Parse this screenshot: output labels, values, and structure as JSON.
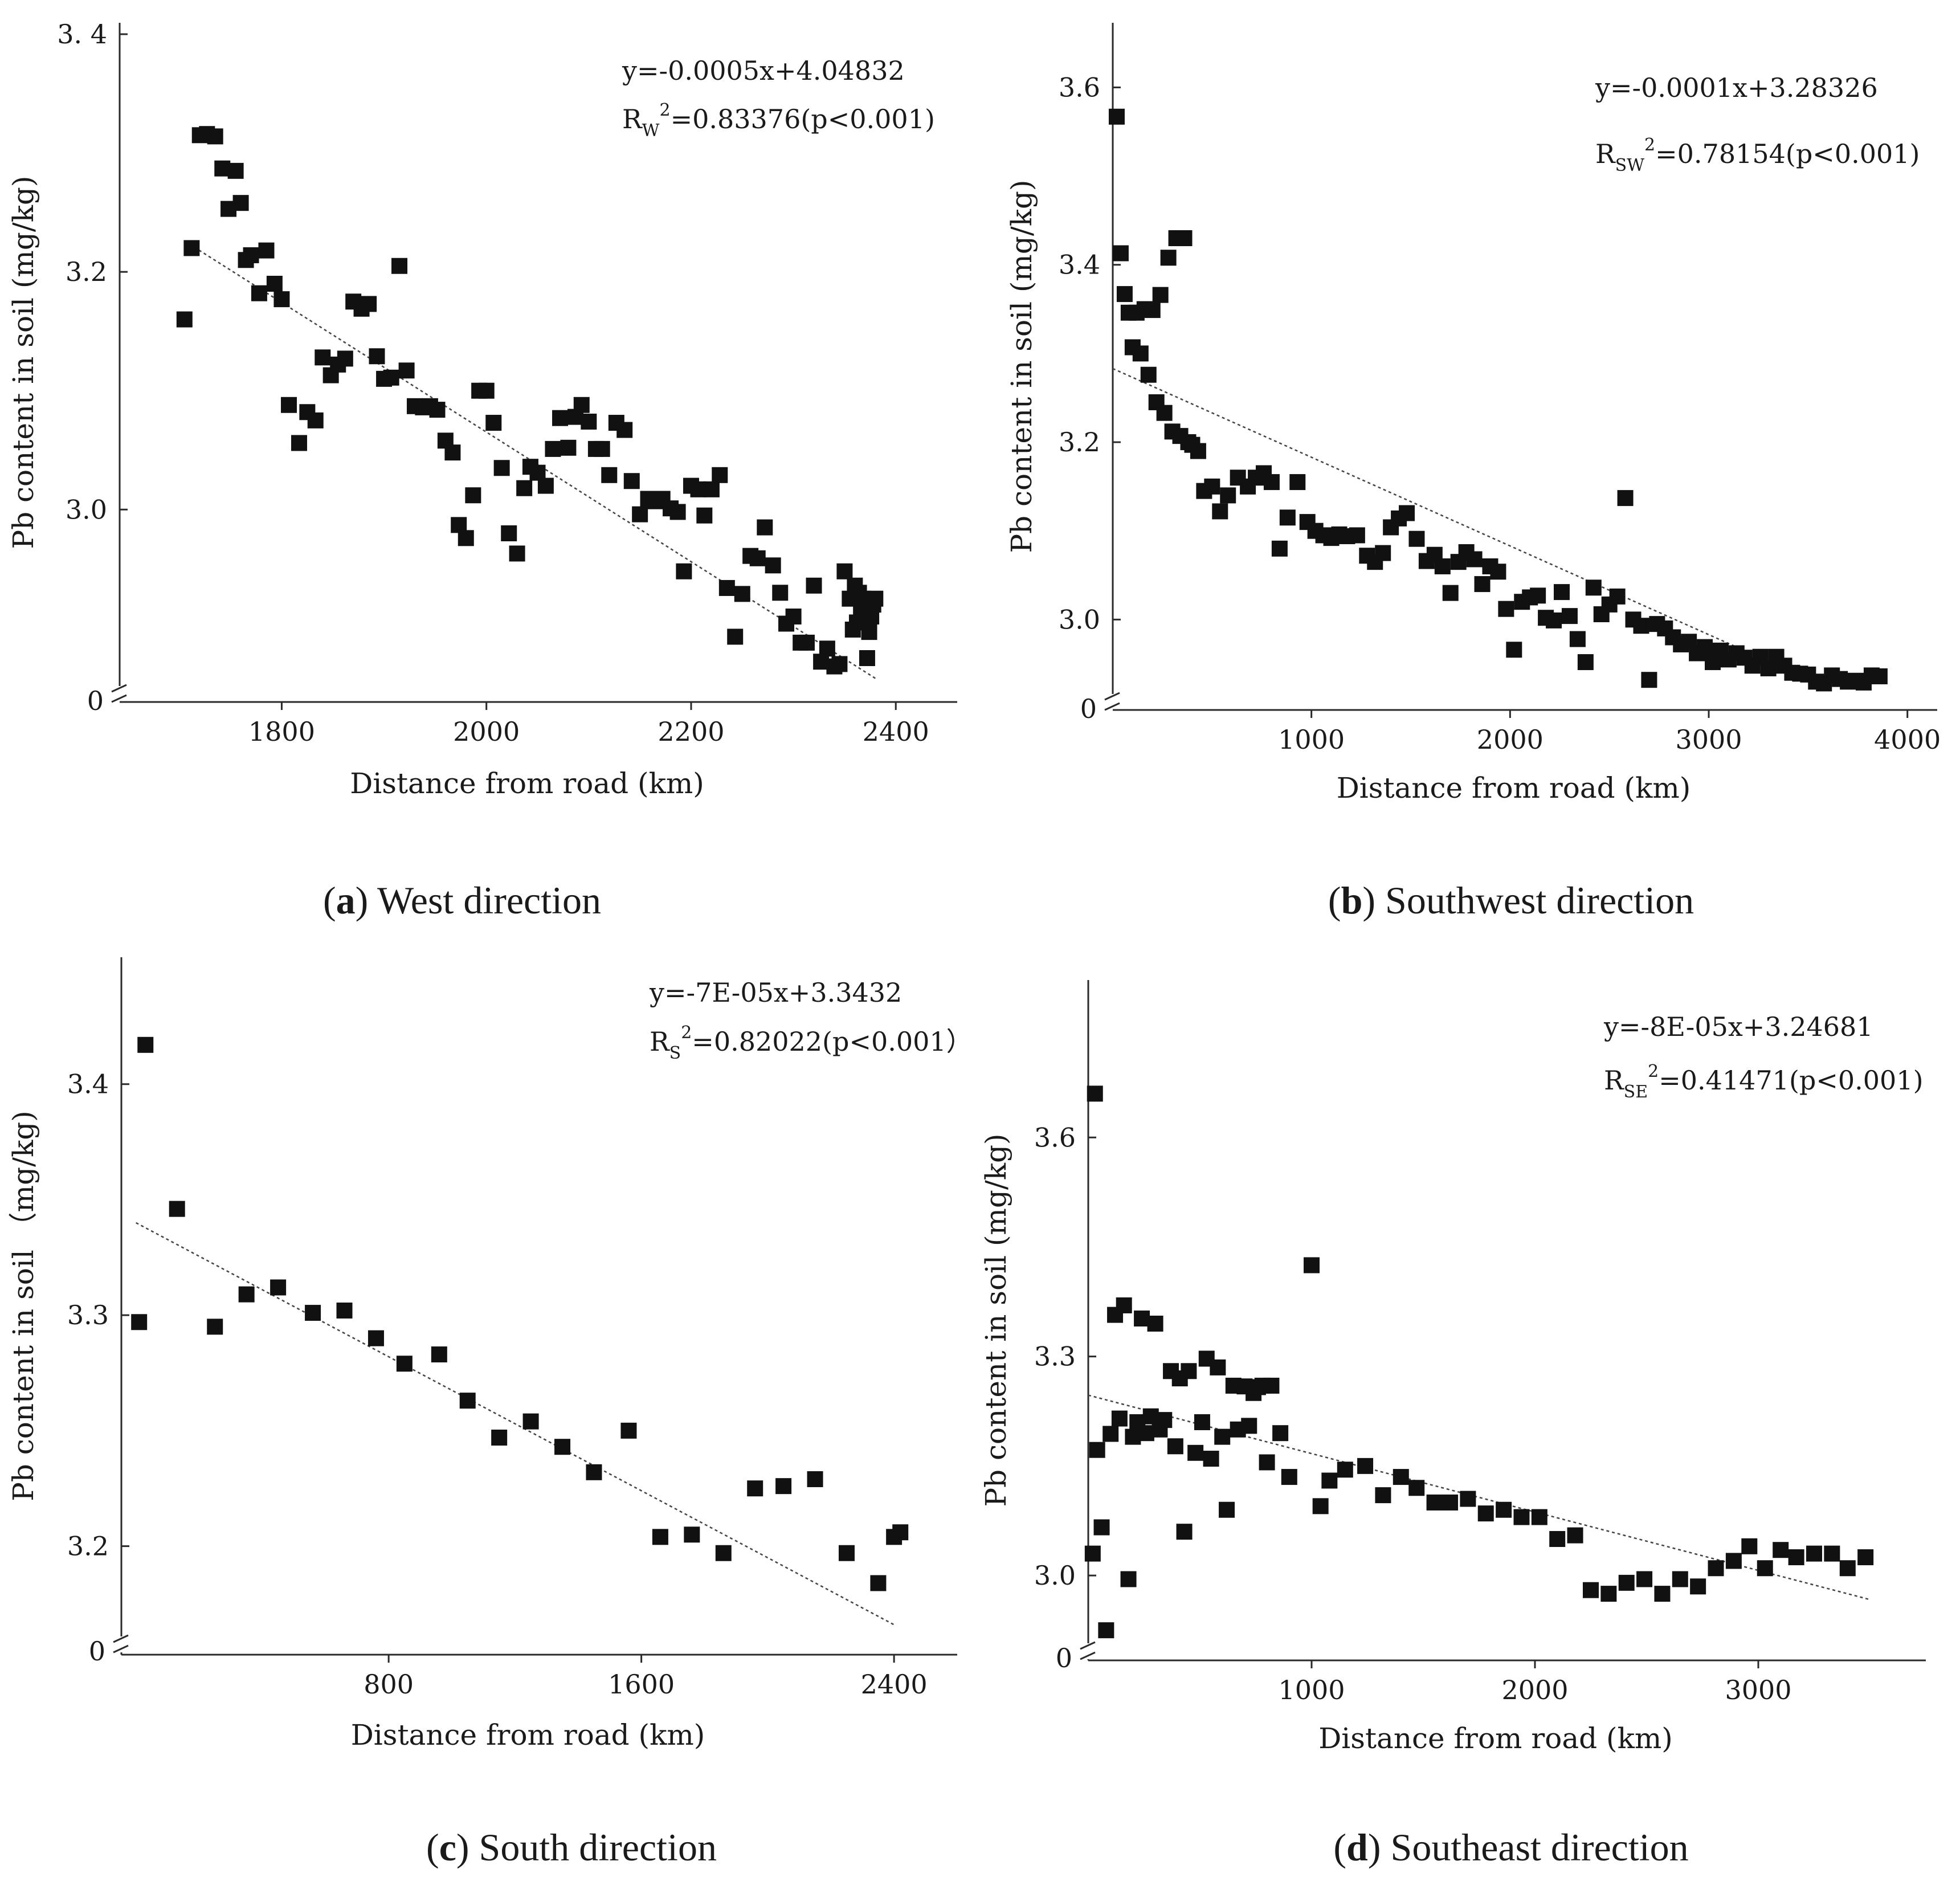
{
  "chart_data": [
    {
      "id": "a",
      "type": "scatter",
      "title": "",
      "caption": {
        "letter": "a",
        "text": "West direction"
      },
      "xlabel": "Distance from road (km)",
      "ylabel": "Pb content in soil (mg/kg)",
      "xlim": [
        1650,
        2460
      ],
      "ylim": [
        2.84,
        3.4
      ],
      "xticks": [
        1800,
        2000,
        2200,
        2400
      ],
      "xtick_labels": [
        "1800",
        "2000",
        "2200",
        "2400"
      ],
      "yticks": [
        3.0,
        3.2,
        3.4
      ],
      "ytick_labels": [
        "3.0",
        "3.2",
        "3. 4"
      ],
      "y_break_label": "0",
      "trendline": {
        "x": [
          1705,
          2380
        ],
        "y": [
          3.226,
          2.858
        ]
      },
      "equation": "y=-0.0005x+4.04832",
      "r2_prefix": "R",
      "r2_subscript": "W",
      "r2_text": "=0.83376(p<0.001)",
      "x": [
        1705,
        1712,
        1720,
        1727,
        1735,
        1742,
        1748,
        1755,
        1760,
        1765,
        1770,
        1778,
        1785,
        1793,
        1800,
        1807,
        1817,
        1825,
        1833,
        1840,
        1848,
        1855,
        1862,
        1870,
        1878,
        1885,
        1893,
        1900,
        1907,
        1915,
        1922,
        1930,
        1938,
        1945,
        1952,
        1960,
        1967,
        1973,
        1980,
        1987,
        1993,
        2000,
        2007,
        2015,
        2022,
        2030,
        2037,
        2043,
        2050,
        2058,
        2065,
        2072,
        2080,
        2087,
        2093,
        2100,
        2107,
        2113,
        2120,
        2127,
        2135,
        2142,
        2150,
        2158,
        2165,
        2172,
        2180,
        2187,
        2193,
        2200,
        2207,
        2213,
        2220,
        2228,
        2235,
        2243,
        2250,
        2258,
        2265,
        2272,
        2280,
        2287,
        2293,
        2300,
        2307,
        2313,
        2320,
        2327,
        2333,
        2340,
        2345,
        2350,
        2355,
        2358,
        2360,
        2362,
        2364,
        2366,
        2368,
        2370,
        2372,
        2374,
        2376,
        2378,
        2380
      ],
      "y": [
        3.16,
        3.22,
        3.315,
        3.316,
        3.314,
        3.287,
        3.253,
        3.285,
        3.258,
        3.21,
        3.214,
        3.182,
        3.218,
        3.19,
        3.177,
        3.088,
        3.056,
        3.082,
        3.075,
        3.128,
        3.113,
        3.122,
        3.127,
        3.175,
        3.169,
        3.173,
        3.129,
        3.11,
        3.111,
        3.205,
        3.117,
        3.087,
        3.086,
        3.087,
        3.084,
        3.058,
        3.048,
        2.987,
        2.976,
        3.012,
        3.1,
        3.1,
        3.073,
        3.035,
        2.98,
        2.963,
        3.018,
        3.036,
        3.031,
        3.02,
        3.051,
        3.077,
        3.052,
        3.078,
        3.088,
        3.074,
        3.051,
        3.051,
        3.029,
        3.073,
        3.067,
        3.024,
        2.996,
        3.009,
        3.007,
        3.009,
        3.001,
        2.998,
        2.948,
        3.02,
        3.017,
        2.995,
        3.017,
        3.029,
        2.934,
        2.893,
        2.929,
        2.961,
        2.959,
        2.985,
        2.953,
        2.93,
        2.904,
        2.91,
        2.888,
        2.888,
        2.936,
        2.872,
        2.883,
        2.868,
        2.87,
        2.948,
        2.925,
        2.899,
        2.936,
        2.905,
        2.93,
        2.916,
        2.925,
        2.905,
        2.875,
        2.897,
        2.91,
        2.92,
        2.925
      ]
    },
    {
      "id": "b",
      "type": "scatter",
      "title": "",
      "caption": {
        "letter": "b",
        "text": "Southwest direction"
      },
      "xlabel": "Distance from road (km)",
      "ylabel": "Pb content in soil (mg/kg)",
      "xlim": [
        0,
        4150
      ],
      "ylim": [
        2.9,
        3.66
      ],
      "xticks": [
        1000,
        2000,
        3000,
        4000
      ],
      "xtick_labels": [
        "1000",
        "2000",
        "3000",
        "4000"
      ],
      "yticks": [
        3.0,
        3.2,
        3.4,
        3.6
      ],
      "ytick_labels": [
        "3.0",
        "3.2",
        "3.4",
        "3.6"
      ],
      "y_break_label": "0",
      "trendline": {
        "x": [
          0,
          3600
        ],
        "y": [
          3.283,
          2.923
        ]
      },
      "equation": "y=-0.0001x+3.28326",
      "r2_prefix": "R",
      "r2_subscript": "SW",
      "r2_text": "=0.78154(p<0.001)",
      "x": [
        20,
        40,
        60,
        80,
        100,
        120,
        140,
        160,
        180,
        200,
        220,
        240,
        260,
        280,
        300,
        320,
        340,
        360,
        380,
        400,
        430,
        460,
        500,
        540,
        580,
        630,
        680,
        720,
        760,
        800,
        840,
        880,
        930,
        980,
        1020,
        1060,
        1100,
        1140,
        1180,
        1230,
        1280,
        1320,
        1360,
        1400,
        1440,
        1480,
        1530,
        1580,
        1620,
        1660,
        1700,
        1740,
        1780,
        1820,
        1860,
        1900,
        1940,
        1980,
        2020,
        2060,
        2100,
        2140,
        2180,
        2220,
        2260,
        2300,
        2340,
        2380,
        2420,
        2460,
        2500,
        2540,
        2580,
        2620,
        2660,
        2700,
        2740,
        2780,
        2820,
        2860,
        2900,
        2940,
        2980,
        3020,
        3060,
        3100,
        3140,
        3180,
        3220,
        3260,
        3300,
        3340,
        3380,
        3420,
        3460,
        3500,
        3540,
        3580,
        3620,
        3660,
        3700,
        3740,
        3780,
        3820,
        3860
      ],
      "y": [
        3.567,
        3.413,
        3.367,
        3.346,
        3.307,
        3.346,
        3.3,
        3.35,
        3.276,
        3.349,
        3.245,
        3.366,
        3.233,
        3.408,
        3.212,
        3.43,
        3.207,
        3.43,
        3.2,
        3.197,
        3.19,
        3.145,
        3.15,
        3.122,
        3.14,
        3.16,
        3.15,
        3.16,
        3.165,
        3.155,
        3.08,
        3.115,
        3.155,
        3.11,
        3.1,
        3.095,
        3.092,
        3.096,
        3.094,
        3.095,
        3.072,
        3.065,
        3.075,
        3.104,
        3.114,
        3.12,
        3.091,
        3.066,
        3.073,
        3.06,
        3.03,
        3.065,
        3.076,
        3.068,
        3.04,
        3.06,
        3.054,
        3.012,
        2.966,
        3.02,
        3.025,
        3.027,
        3.002,
        2.999,
        3.031,
        3.004,
        2.978,
        2.952,
        3.036,
        3.006,
        3.017,
        3.026,
        3.137,
        3.0,
        2.993,
        2.932,
        2.995,
        2.99,
        2.98,
        2.972,
        2.975,
        2.962,
        2.969,
        2.952,
        2.965,
        2.955,
        2.962,
        2.957,
        2.948,
        2.958,
        2.945,
        2.958,
        2.948,
        2.94,
        2.939,
        2.938,
        2.93,
        2.928,
        2.937,
        2.933,
        2.93,
        2.931,
        2.929,
        2.937,
        2.936
      ]
    },
    {
      "id": "c",
      "type": "scatter",
      "title": "",
      "caption": {
        "letter": "c",
        "text": "South direction"
      },
      "xlabel": "Distance from road (km)",
      "ylabel": "Pb content in soil （mg/kg)",
      "xlim": [
        -30,
        2600
      ],
      "ylim": [
        3.155,
        3.45
      ],
      "xticks": [
        800,
        1600,
        2400
      ],
      "xtick_labels": [
        "800",
        "1600",
        "2400"
      ],
      "yticks": [
        3.2,
        3.3,
        3.4
      ],
      "ytick_labels": [
        "3.2",
        "3.3",
        "3.4"
      ],
      "y_break_label": "0",
      "trendline": {
        "x": [
          0,
          2400
        ],
        "y": [
          3.34,
          3.166
        ]
      },
      "equation": "y=-7E-05x+3.3432",
      "r2_prefix": "R",
      "r2_subscript": "S",
      "r2_text": "=0.82022(p<0.001）",
      "x": [
        10,
        30,
        130,
        250,
        350,
        450,
        560,
        660,
        760,
        850,
        960,
        1050,
        1150,
        1250,
        1350,
        1450,
        1560,
        1660,
        1760,
        1860,
        1960,
        2050,
        2150,
        2250,
        2350,
        2400,
        2420
      ],
      "y": [
        3.297,
        3.417,
        3.346,
        3.295,
        3.309,
        3.312,
        3.301,
        3.302,
        3.29,
        3.279,
        3.283,
        3.263,
        3.247,
        3.254,
        3.243,
        3.232,
        3.25,
        3.204,
        3.205,
        3.197,
        3.225,
        3.226,
        3.229,
        3.197,
        3.184,
        3.204,
        3.206
      ]
    },
    {
      "id": "d",
      "type": "scatter",
      "title": "",
      "caption": {
        "letter": "d",
        "text": "Southeast direction"
      },
      "xlabel": "Distance from road (km)",
      "ylabel": "Pb content in soil (mg/kg)",
      "xlim": [
        0,
        3750
      ],
      "ylim": [
        2.89,
        3.8
      ],
      "xticks": [
        1000,
        2000,
        3000
      ],
      "xtick_labels": [
        "1000",
        "2000",
        "3000"
      ],
      "yticks": [
        3.0,
        3.3,
        3.6
      ],
      "ytick_labels": [
        "3.0",
        "3.3",
        "3.6"
      ],
      "y_break_label": "0",
      "trendline": {
        "x": [
          0,
          3500
        ],
        "y": [
          3.247,
          2.967
        ]
      },
      "equation": "y=-8E-05x+3.24681",
      "r2_prefix": "R",
      "r2_subscript": "SE",
      "r2_text": "=0.41471(p<0.001)",
      "x": [
        20,
        30,
        40,
        60,
        80,
        100,
        120,
        140,
        160,
        180,
        200,
        220,
        240,
        260,
        280,
        300,
        320,
        340,
        370,
        390,
        410,
        430,
        450,
        480,
        510,
        530,
        550,
        580,
        600,
        620,
        650,
        670,
        700,
        720,
        740,
        760,
        780,
        800,
        820,
        860,
        900,
        1000,
        1040,
        1080,
        1150,
        1240,
        1320,
        1400,
        1470,
        1550,
        1620,
        1700,
        1780,
        1860,
        1940,
        2020,
        2100,
        2180,
        2250,
        2330,
        2410,
        2490,
        2570,
        2650,
        2730,
        2810,
        2890,
        2960,
        3030,
        3100,
        3170,
        3250,
        3330,
        3400,
        3480
      ],
      "y": [
        3.03,
        3.66,
        3.172,
        3.066,
        2.925,
        3.194,
        3.357,
        3.215,
        3.37,
        2.995,
        3.19,
        3.21,
        3.352,
        3.195,
        3.218,
        3.345,
        3.2,
        3.213,
        3.28,
        3.177,
        3.27,
        3.06,
        3.28,
        3.168,
        3.21,
        3.297,
        3.16,
        3.285,
        3.19,
        3.09,
        3.26,
        3.2,
        3.259,
        3.205,
        3.25,
        3.258,
        3.26,
        3.155,
        3.26,
        3.195,
        3.135,
        3.425,
        3.095,
        3.13,
        3.145,
        3.15,
        3.11,
        3.135,
        3.12,
        3.1,
        3.1,
        3.105,
        3.085,
        3.09,
        3.08,
        3.08,
        3.05,
        3.055,
        2.98,
        2.975,
        2.99,
        2.995,
        2.975,
        2.995,
        2.985,
        3.01,
        3.02,
        3.04,
        3.01,
        3.035,
        3.025,
        3.03,
        3.03,
        3.01,
        3.025
      ]
    }
  ]
}
